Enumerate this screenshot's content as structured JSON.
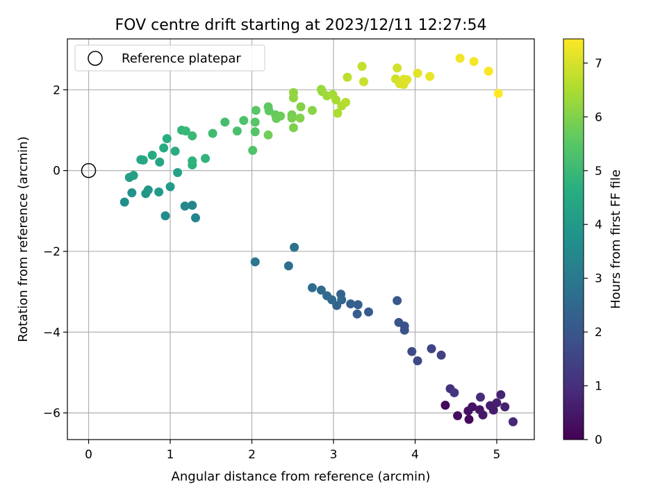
{
  "chart_data": {
    "type": "scatter",
    "title": "FOV centre drift starting at 2023/12/11 12:27:54",
    "xlabel": "Angular distance from reference (arcmin)",
    "ylabel": "Rotation from reference (arcmin)",
    "xlim": [
      -0.26,
      5.46
    ],
    "ylim": [
      -6.66,
      3.26
    ],
    "x_ticks": [
      0,
      1,
      2,
      3,
      4,
      5
    ],
    "y_ticks": [
      -6,
      -4,
      -2,
      0,
      2
    ],
    "x_tick_labels": [
      "0",
      "1",
      "2",
      "3",
      "4",
      "5"
    ],
    "y_tick_labels": [
      "−6",
      "−4",
      "−2",
      "0",
      "2"
    ],
    "grid": true,
    "legend": {
      "placement": "top-left",
      "entries": [
        "Reference platepar"
      ]
    },
    "reference_point": {
      "x": 0,
      "y": 0
    },
    "colorbar": {
      "label": "Hours from first FF file",
      "range": [
        0,
        7.45
      ],
      "ticks": [
        0,
        1,
        2,
        3,
        4,
        5,
        6,
        7
      ],
      "tick_labels": [
        "0",
        "1",
        "2",
        "3",
        "4",
        "5",
        "6",
        "7"
      ],
      "colormap": "viridis"
    },
    "points": [
      {
        "x": 4.37,
        "y": -5.81,
        "h": 0.15
      },
      {
        "x": 4.66,
        "y": -6.16,
        "h": 0.2
      },
      {
        "x": 4.52,
        "y": -6.07,
        "h": 0.3
      },
      {
        "x": 4.65,
        "y": -5.95,
        "h": 0.35
      },
      {
        "x": 4.7,
        "y": -5.85,
        "h": 0.4
      },
      {
        "x": 4.79,
        "y": -5.92,
        "h": 0.45
      },
      {
        "x": 4.83,
        "y": -6.05,
        "h": 0.5
      },
      {
        "x": 4.92,
        "y": -5.82,
        "h": 0.55
      },
      {
        "x": 4.96,
        "y": -5.93,
        "h": 0.6
      },
      {
        "x": 5.0,
        "y": -5.75,
        "h": 0.65
      },
      {
        "x": 5.1,
        "y": -5.85,
        "h": 0.7
      },
      {
        "x": 5.05,
        "y": -5.55,
        "h": 0.75
      },
      {
        "x": 5.2,
        "y": -6.22,
        "h": 0.8
      },
      {
        "x": 4.8,
        "y": -5.61,
        "h": 0.9
      },
      {
        "x": 4.43,
        "y": -5.4,
        "h": 1.05
      },
      {
        "x": 4.48,
        "y": -5.5,
        "h": 1.15
      },
      {
        "x": 4.32,
        "y": -4.57,
        "h": 1.4
      },
      {
        "x": 4.2,
        "y": -4.41,
        "h": 1.5
      },
      {
        "x": 4.03,
        "y": -4.71,
        "h": 1.6
      },
      {
        "x": 3.96,
        "y": -4.48,
        "h": 1.7
      },
      {
        "x": 3.87,
        "y": -3.85,
        "h": 1.85
      },
      {
        "x": 3.87,
        "y": -3.95,
        "h": 1.9
      },
      {
        "x": 3.8,
        "y": -3.76,
        "h": 1.95
      },
      {
        "x": 3.78,
        "y": -3.22,
        "h": 2.05
      },
      {
        "x": 3.43,
        "y": -3.5,
        "h": 2.15
      },
      {
        "x": 3.29,
        "y": -3.55,
        "h": 2.2
      },
      {
        "x": 3.3,
        "y": -3.32,
        "h": 2.25
      },
      {
        "x": 3.21,
        "y": -3.3,
        "h": 2.3
      },
      {
        "x": 3.09,
        "y": -3.06,
        "h": 2.35
      },
      {
        "x": 3.04,
        "y": -3.34,
        "h": 2.4
      },
      {
        "x": 3.1,
        "y": -3.2,
        "h": 2.45
      },
      {
        "x": 2.98,
        "y": -3.2,
        "h": 2.5
      },
      {
        "x": 2.92,
        "y": -3.1,
        "h": 2.55
      },
      {
        "x": 2.85,
        "y": -2.96,
        "h": 2.6
      },
      {
        "x": 2.74,
        "y": -2.9,
        "h": 2.65
      },
      {
        "x": 2.45,
        "y": -2.36,
        "h": 2.75
      },
      {
        "x": 2.52,
        "y": -1.9,
        "h": 2.8
      },
      {
        "x": 2.04,
        "y": -2.26,
        "h": 2.95
      },
      {
        "x": 1.31,
        "y": -1.17,
        "h": 3.35
      },
      {
        "x": 1.27,
        "y": -0.86,
        "h": 3.4
      },
      {
        "x": 1.18,
        "y": -0.88,
        "h": 3.45
      },
      {
        "x": 0.94,
        "y": -1.12,
        "h": 3.55
      },
      {
        "x": 0.44,
        "y": -0.78,
        "h": 3.7
      },
      {
        "x": 0.53,
        "y": -0.55,
        "h": 3.8
      },
      {
        "x": 0.7,
        "y": -0.57,
        "h": 3.9
      },
      {
        "x": 0.73,
        "y": -0.48,
        "h": 3.95
      },
      {
        "x": 0.86,
        "y": -0.53,
        "h": 4.0
      },
      {
        "x": 1.0,
        "y": -0.4,
        "h": 4.05
      },
      {
        "x": 0.5,
        "y": -0.17,
        "h": 4.15
      },
      {
        "x": 0.55,
        "y": -0.12,
        "h": 4.2
      },
      {
        "x": 1.09,
        "y": -0.05,
        "h": 4.3
      },
      {
        "x": 0.87,
        "y": 0.21,
        "h": 4.35
      },
      {
        "x": 0.64,
        "y": 0.27,
        "h": 4.4
      },
      {
        "x": 0.67,
        "y": 0.26,
        "h": 4.45
      },
      {
        "x": 0.78,
        "y": 0.38,
        "h": 4.5
      },
      {
        "x": 0.92,
        "y": 0.56,
        "h": 4.55
      },
      {
        "x": 1.06,
        "y": 0.48,
        "h": 4.6
      },
      {
        "x": 0.96,
        "y": 0.79,
        "h": 4.65
      },
      {
        "x": 1.27,
        "y": 0.14,
        "h": 4.75
      },
      {
        "x": 1.27,
        "y": 0.24,
        "h": 4.8
      },
      {
        "x": 1.43,
        "y": 0.3,
        "h": 4.85
      },
      {
        "x": 1.14,
        "y": 1.0,
        "h": 4.9
      },
      {
        "x": 1.19,
        "y": 0.98,
        "h": 4.95
      },
      {
        "x": 1.27,
        "y": 0.86,
        "h": 5.0
      },
      {
        "x": 1.52,
        "y": 0.92,
        "h": 5.1
      },
      {
        "x": 1.67,
        "y": 1.2,
        "h": 5.15
      },
      {
        "x": 1.82,
        "y": 0.98,
        "h": 5.25
      },
      {
        "x": 1.9,
        "y": 1.24,
        "h": 5.3
      },
      {
        "x": 2.01,
        "y": 0.5,
        "h": 5.35
      },
      {
        "x": 2.04,
        "y": 0.96,
        "h": 5.4
      },
      {
        "x": 2.04,
        "y": 1.2,
        "h": 5.45
      },
      {
        "x": 2.05,
        "y": 1.49,
        "h": 5.5
      },
      {
        "x": 2.2,
        "y": 1.58,
        "h": 5.55
      },
      {
        "x": 2.21,
        "y": 1.48,
        "h": 5.6
      },
      {
        "x": 2.29,
        "y": 1.38,
        "h": 5.65
      },
      {
        "x": 2.3,
        "y": 1.29,
        "h": 5.7
      },
      {
        "x": 2.35,
        "y": 1.35,
        "h": 5.75
      },
      {
        "x": 2.2,
        "y": 0.88,
        "h": 5.8
      },
      {
        "x": 2.49,
        "y": 1.38,
        "h": 5.85
      },
      {
        "x": 2.49,
        "y": 1.3,
        "h": 5.9
      },
      {
        "x": 2.51,
        "y": 1.06,
        "h": 5.95
      },
      {
        "x": 2.59,
        "y": 1.3,
        "h": 6.0
      },
      {
        "x": 2.6,
        "y": 1.58,
        "h": 6.05
      },
      {
        "x": 2.74,
        "y": 1.49,
        "h": 6.1
      },
      {
        "x": 2.51,
        "y": 1.8,
        "h": 6.15
      },
      {
        "x": 2.51,
        "y": 1.93,
        "h": 6.2
      },
      {
        "x": 2.86,
        "y": 1.96,
        "h": 6.25
      },
      {
        "x": 2.85,
        "y": 2.01,
        "h": 6.3
      },
      {
        "x": 2.92,
        "y": 1.85,
        "h": 6.35
      },
      {
        "x": 2.99,
        "y": 1.88,
        "h": 6.4
      },
      {
        "x": 3.03,
        "y": 1.75,
        "h": 6.45
      },
      {
        "x": 3.05,
        "y": 1.42,
        "h": 6.5
      },
      {
        "x": 3.1,
        "y": 1.6,
        "h": 6.55
      },
      {
        "x": 3.15,
        "y": 1.69,
        "h": 6.6
      },
      {
        "x": 3.17,
        "y": 2.31,
        "h": 6.7
      },
      {
        "x": 3.35,
        "y": 2.58,
        "h": 6.8
      },
      {
        "x": 3.37,
        "y": 2.2,
        "h": 6.85
      },
      {
        "x": 3.76,
        "y": 2.27,
        "h": 6.9
      },
      {
        "x": 3.78,
        "y": 2.54,
        "h": 6.95
      },
      {
        "x": 3.81,
        "y": 2.15,
        "h": 7.0
      },
      {
        "x": 3.82,
        "y": 2.21,
        "h": 7.02
      },
      {
        "x": 3.86,
        "y": 2.13,
        "h": 7.05
      },
      {
        "x": 3.86,
        "y": 2.26,
        "h": 7.08
      },
      {
        "x": 3.9,
        "y": 2.25,
        "h": 7.1
      },
      {
        "x": 4.03,
        "y": 2.41,
        "h": 7.15
      },
      {
        "x": 4.18,
        "y": 2.33,
        "h": 7.2
      },
      {
        "x": 4.55,
        "y": 2.78,
        "h": 7.3
      },
      {
        "x": 4.72,
        "y": 2.7,
        "h": 7.35
      },
      {
        "x": 4.9,
        "y": 2.46,
        "h": 7.4
      },
      {
        "x": 5.02,
        "y": 1.91,
        "h": 7.45
      }
    ]
  }
}
